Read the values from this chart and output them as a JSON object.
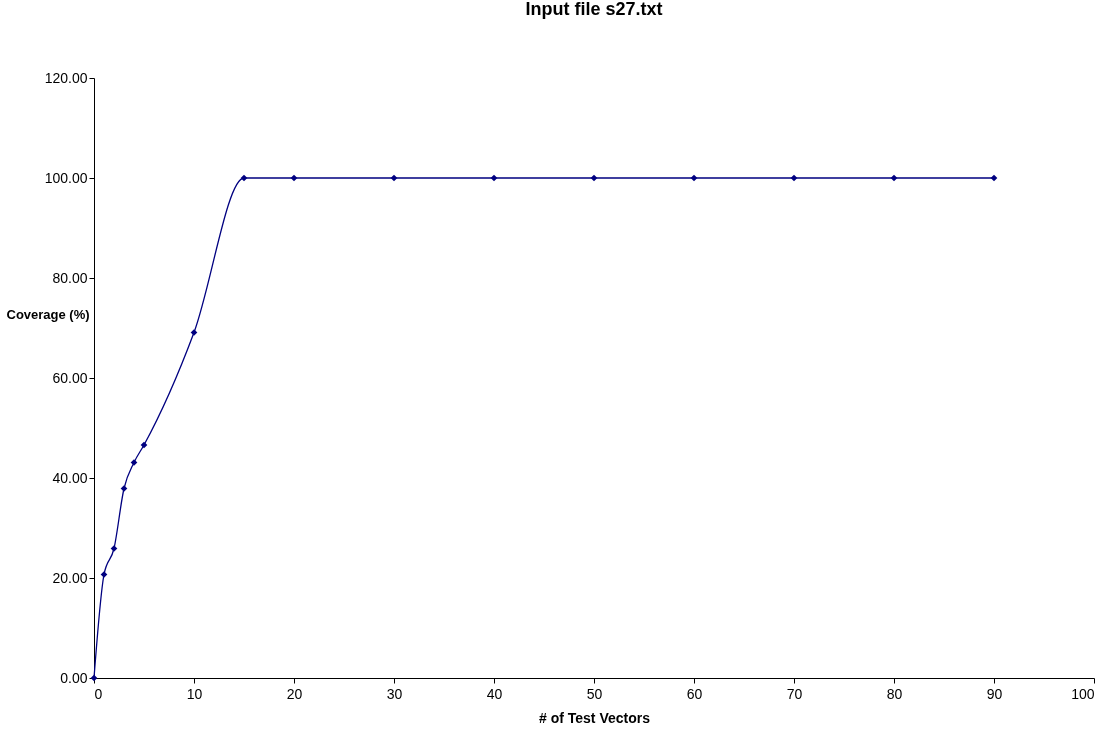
{
  "chart_data": {
    "type": "line",
    "title": "Input file s27.txt",
    "xlabel": "# of Test Vectors",
    "ylabel": "Coverage (%)",
    "x": [
      0,
      1,
      2,
      3,
      4,
      5,
      10,
      15,
      20,
      30,
      40,
      50,
      60,
      70,
      80,
      90
    ],
    "series": [
      {
        "color": "#000080",
        "values": [
          0,
          20.7,
          25.9,
          37.9,
          43.1,
          46.6,
          69.1,
          100,
          100,
          100,
          100,
          100,
          100,
          100,
          100,
          100
        ]
      }
    ],
    "xlim": [
      0,
      100
    ],
    "xticks": [
      0,
      10,
      20,
      30,
      40,
      50,
      60,
      70,
      80,
      90,
      100
    ],
    "ylim": [
      0,
      120
    ],
    "yticks": [
      {
        "value": 0,
        "label": "0.00"
      },
      {
        "value": 20,
        "label": "20.00"
      },
      {
        "value": 40,
        "label": "40.00"
      },
      {
        "value": 60,
        "label": "60.00"
      },
      {
        "value": 80,
        "label": "80.00"
      },
      {
        "value": 100,
        "label": "100.00"
      },
      {
        "value": 120,
        "label": "120.00"
      }
    ],
    "marker": "diamond",
    "line_style": "solid",
    "grid": false
  }
}
